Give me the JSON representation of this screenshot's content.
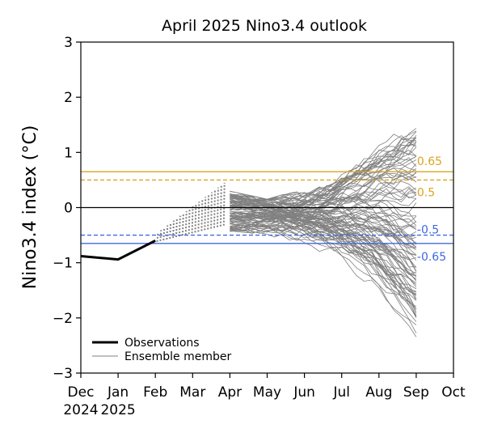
{
  "chart_data": {
    "type": "line",
    "title": "April 2025 Nino3.4 outlook",
    "xlabel": "",
    "ylabel": "Nino3.4 index (°C)",
    "ylim": [
      -3,
      3
    ],
    "yticks": [
      "−3",
      "−2",
      "−1",
      "0",
      "1",
      "2",
      "3"
    ],
    "xlim": [
      0,
      10
    ],
    "x_tick_labels": [
      "Dec",
      "Jan",
      "Feb",
      "Mar",
      "Apr",
      "May",
      "Jun",
      "Jul",
      "Aug",
      "Sep",
      "Oct"
    ],
    "x_year_labels": [
      {
        "x": 0,
        "label": "2024"
      },
      {
        "x": 1,
        "label": "2025"
      }
    ],
    "grid": false,
    "legend_placement": "lower-left",
    "legend": [
      {
        "label": "Observations",
        "style": "observations"
      },
      {
        "label": "Ensemble member",
        "style": "ensemble"
      }
    ],
    "reference_lines": [
      {
        "y": 0.65,
        "label": "0.65",
        "color": "#DAA520",
        "dashed": false
      },
      {
        "y": 0.5,
        "label": "0.5",
        "color": "#DAA520",
        "dashed": true
      },
      {
        "y": 0,
        "label": "",
        "color": "#000000",
        "dashed": false
      },
      {
        "y": -0.5,
        "label": "-0.5",
        "color": "#4169E1",
        "dashed": true
      },
      {
        "y": -0.65,
        "label": "-0.65",
        "color": "#4169E1",
        "dashed": false
      }
    ],
    "series": [
      {
        "name": "Observations",
        "x": [
          0,
          1,
          2
        ],
        "y": [
          -0.88,
          -0.94,
          -0.6
        ]
      },
      {
        "name": "Ensemble member",
        "n_members": 100,
        "x_start": 4,
        "x_end": 9,
        "envelope": {
          "x": [
            4,
            5,
            6,
            7,
            8,
            9
          ],
          "y_min": [
            -0.45,
            -0.65,
            -0.85,
            -1.2,
            -1.75,
            -2.35
          ],
          "y_max": [
            0.3,
            0.15,
            0.35,
            0.95,
            1.38,
            1.57
          ]
        }
      }
    ]
  }
}
